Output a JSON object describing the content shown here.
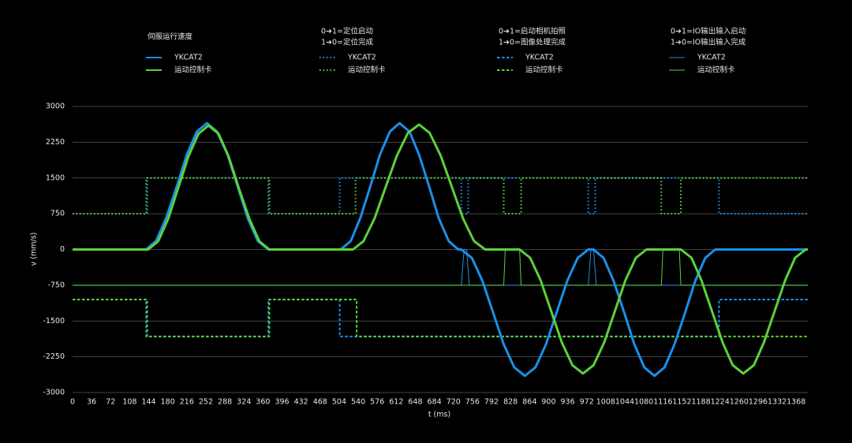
{
  "chart_data": {
    "type": "line",
    "xlabel": "t (ms)",
    "ylabel": "v (mm/s)",
    "xlim": [
      0,
      1390
    ],
    "ylim": [
      -3000,
      3000
    ],
    "xticks": [
      0,
      36,
      72,
      108,
      144,
      180,
      216,
      252,
      288,
      324,
      360,
      396,
      432,
      468,
      504,
      540,
      576,
      612,
      648,
      684,
      720,
      756,
      792,
      828,
      864,
      900,
      936,
      972,
      1008,
      1044,
      1080,
      1116,
      1152,
      1188,
      1224,
      1260,
      1296,
      1332,
      1368
    ],
    "yticks": [
      3000,
      2250,
      1500,
      750,
      0,
      -750,
      -1500,
      -2250,
      -3000
    ],
    "grid": true,
    "groups": [
      {
        "title": [
          "伺服运行速度"
        ],
        "series": [
          {
            "name": "YKCAT2",
            "color": "#1a8fe8",
            "line_style": "solid",
            "x": [
              0,
              139,
              158,
              177,
              197,
              216,
              235,
              254,
              273,
              293,
              312,
              331,
              350,
              370,
              507,
              526,
              544,
              563,
              581,
              600,
              618,
              637,
              655,
              674,
              692,
              711,
              729,
              735,
              755,
              775,
              795,
              815,
              835,
              855,
              875,
              895,
              915,
              935,
              955,
              975,
              985,
              1004,
              1023,
              1043,
              1062,
              1081,
              1100,
              1119,
              1138,
              1158,
              1177,
              1196,
              1215,
              1390
            ],
            "values": [
              0,
              0,
              178,
              663,
              1325,
              1988,
              2473,
              2650,
              2473,
              1988,
              1325,
              663,
              178,
              0,
              0,
              178,
              663,
              1325,
              1988,
              2473,
              2650,
              2473,
              1988,
              1325,
              663,
              178,
              0,
              0,
              -178,
              -663,
              -1325,
              -1988,
              -2473,
              -2650,
              -2473,
              -1988,
              -1325,
              -663,
              -178,
              0,
              0,
              -178,
              -663,
              -1325,
              -1988,
              -2473,
              -2650,
              -2473,
              -1988,
              -1325,
              -663,
              -178,
              0,
              0
            ]
          },
          {
            "name": "运动控制卡",
            "color": "#5cd13a",
            "line_style": "solid",
            "x": [
              0,
              143,
              162,
              181,
              200,
              219,
              238,
              257,
              276,
              295,
              314,
              334,
              353,
              372,
              530,
              550,
              571,
              592,
              613,
              634,
              655,
              675,
              696,
              717,
              738,
              759,
              780,
              845,
              865,
              885,
              905,
              925,
              945,
              965,
              985,
              1005,
              1025,
              1045,
              1065,
              1085,
              1150,
              1170,
              1189,
              1209,
              1229,
              1248,
              1268,
              1288,
              1307,
              1327,
              1347,
              1366,
              1386,
              1390
            ],
            "values": [
              0,
              0,
              174,
              650,
              1300,
              1950,
              2426,
              2600,
              2426,
              1950,
              1300,
              650,
              174,
              0,
              0,
              176,
              655,
              1310,
              1965,
              2444,
              2620,
              2444,
              1965,
              1310,
              655,
              176,
              0,
              0,
              -174,
              -650,
              -1300,
              -1950,
              -2426,
              -2600,
              -2426,
              -1950,
              -1300,
              -650,
              -174,
              0,
              0,
              -174,
              -650,
              -1300,
              -1950,
              -2426,
              -2600,
              -2426,
              -1950,
              -1300,
              -650,
              -174,
              0,
              0
            ]
          }
        ]
      },
      {
        "title": [
          "0➔1=定位启动",
          "1➔0=定位完成"
        ],
        "series": [
          {
            "name": "YKCAT2",
            "color": "#1a8fe8",
            "line_style": "dotted",
            "x": [
              0,
              139,
              139,
              370,
              370,
              505,
              505,
              735,
              735,
              748,
              748,
              975,
              975,
              988,
              988,
              1222,
              1222,
              1390
            ],
            "values": [
              750,
              750,
              1500,
              1500,
              750,
              750,
              1500,
              1500,
              750,
              750,
              1500,
              1500,
              750,
              750,
              1500,
              1500,
              750,
              750
            ]
          },
          {
            "name": "运动控制卡",
            "color": "#5cd13a",
            "line_style": "dotted",
            "x": [
              0,
              141,
              141,
              372,
              372,
              535,
              535,
              815,
              815,
              848,
              848,
              1113,
              1113,
              1150,
              1150,
              1390
            ],
            "values": [
              750,
              750,
              1500,
              1500,
              750,
              750,
              1500,
              1500,
              750,
              750,
              1500,
              1500,
              750,
              750,
              1500,
              1500
            ]
          }
        ]
      },
      {
        "title": [
          "0➔1=启动相机拍照",
          "1➔0=图像处理完成"
        ],
        "series": [
          {
            "name": "YKCAT2",
            "color": "#1a8fe8",
            "line_style": "dashed",
            "x": [
              0,
              139,
              139,
              370,
              370,
              505,
              505,
              1222,
              1222,
              1390
            ],
            "values": [
              -1050,
              -1050,
              -1825,
              -1825,
              -1050,
              -1050,
              -1825,
              -1825,
              -1050,
              -1050
            ]
          },
          {
            "name": "运动控制卡",
            "color": "#5cd13a",
            "line_style": "dashed",
            "x": [
              0,
              141,
              141,
              372,
              372,
              537,
              537,
              1390
            ],
            "values": [
              -1050,
              -1050,
              -1825,
              -1825,
              -1050,
              -1050,
              -1825,
              -1825
            ]
          }
        ]
      },
      {
        "title": [
          "0➔1=IO输出输入启动",
          "1➔0=IO输出输入完成"
        ],
        "series": [
          {
            "name": "YKCAT2",
            "color": "#1a8fe8",
            "line_style": "thin",
            "x": [
              0,
              735,
              740,
              745,
              750,
              975,
              980,
              985,
              990,
              1390
            ],
            "values": [
              -750,
              -750,
              0,
              0,
              -750,
              -750,
              0,
              0,
              -750,
              -750
            ]
          },
          {
            "name": "运动控制卡",
            "color": "#5cd13a",
            "line_style": "thin",
            "x": [
              0,
              815,
              818,
              845,
              848,
              1113,
              1116,
              1147,
              1150,
              1390
            ],
            "values": [
              -750,
              -750,
              0,
              0,
              -750,
              -750,
              0,
              0,
              -750,
              -750
            ]
          }
        ]
      }
    ]
  }
}
